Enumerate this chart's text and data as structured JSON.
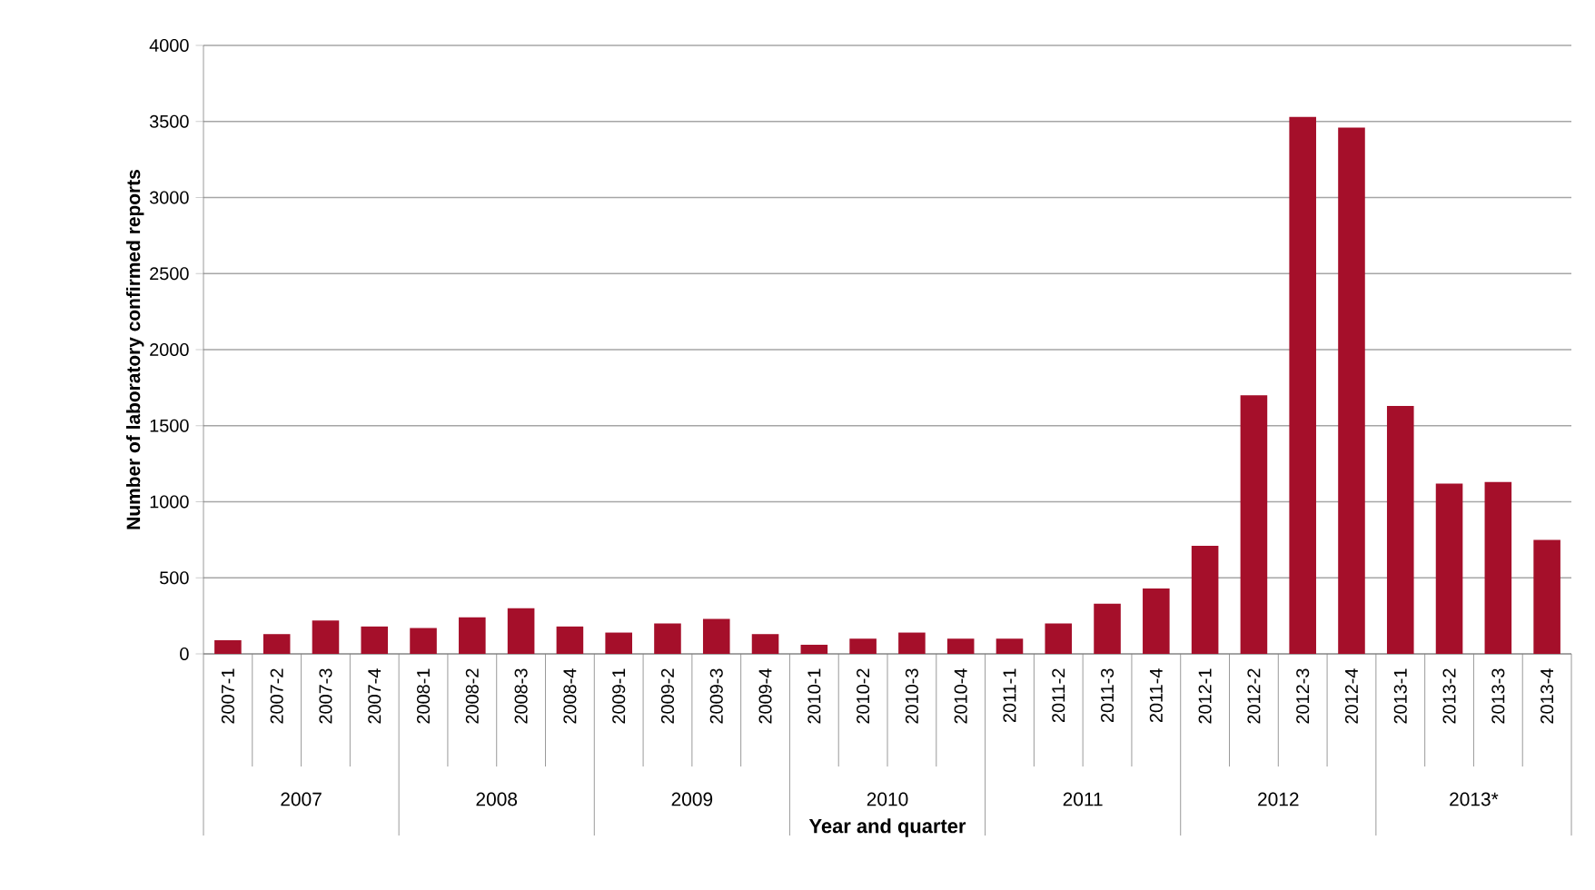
{
  "chart_data": {
    "type": "bar",
    "xlabel": "Year and quarter",
    "ylabel": "Number of laboratory confirmed reports",
    "categories": [
      "2007-1",
      "2007-2",
      "2007-3",
      "2007-4",
      "2008-1",
      "2008-2",
      "2008-3",
      "2008-4",
      "2009-1",
      "2009-2",
      "2009-3",
      "2009-4",
      "2010-1",
      "2010-2",
      "2010-3",
      "2010-4",
      "2011-1",
      "2011-2",
      "2011-3",
      "2011-4",
      "2012-1",
      "2012-2",
      "2012-3",
      "2012-4",
      "2013-1",
      "2013-2",
      "2013-3",
      "2013-4"
    ],
    "values": [
      90,
      130,
      220,
      180,
      170,
      240,
      300,
      180,
      140,
      200,
      230,
      130,
      60,
      100,
      140,
      100,
      100,
      200,
      330,
      430,
      710,
      1700,
      3530,
      3460,
      1630,
      1120,
      1130,
      750
    ],
    "color": "#a50f2a",
    "ylim": [
      0,
      4000
    ],
    "yticks": [
      0,
      500,
      1000,
      1500,
      2000,
      2500,
      3000,
      3500,
      4000
    ],
    "grid": "y",
    "annotations": [
      "2007",
      "2008",
      "2009",
      "2010",
      "2011",
      "2012",
      "2013*"
    ]
  }
}
